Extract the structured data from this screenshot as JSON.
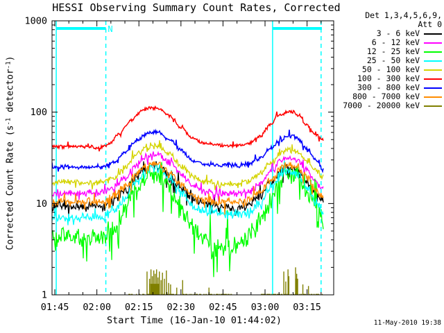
{
  "chart_data": {
    "type": "line",
    "title": "HESSI Observing Summary Count Rates, Corrected",
    "xlabel": "Start Time (16-Jan-10 01:44:02)",
    "ylabel_parts": {
      "p1": "Corrected Count Rate (s",
      "s1": "-1",
      "p2": " detector",
      "s2": "-1",
      "p3": ")"
    },
    "footer_timestamp": "11-May-2010 19:38",
    "x_axis": {
      "unit": "minutes since 01:44:02",
      "range_min": [
        0,
        100.5
      ],
      "ticks": [
        {
          "m": 1,
          "label": "01:45"
        },
        {
          "m": 16,
          "label": "02:00"
        },
        {
          "m": 31,
          "label": "02:15"
        },
        {
          "m": 46,
          "label": "02:30"
        },
        {
          "m": 61,
          "label": "02:45"
        },
        {
          "m": 76,
          "label": "03:00"
        },
        {
          "m": 91,
          "label": "03:15"
        }
      ],
      "minor_ticks_min": [
        6,
        11,
        21,
        26,
        36,
        41,
        51,
        56,
        66,
        71,
        81,
        86,
        96
      ]
    },
    "y_axis": {
      "scale": "log",
      "range": [
        1,
        1000
      ],
      "ticks": [
        {
          "v": 1000,
          "label": "1000"
        },
        {
          "v": 100,
          "label": "100"
        },
        {
          "v": 10,
          "label": "10"
        },
        {
          "v": 1,
          "label": "1"
        }
      ]
    },
    "legend": {
      "header_line1": "Det 1,3,4,5,6,9,",
      "header_line2": "Att 0"
    },
    "flags": {
      "color": "#00ffff",
      "night_label": "N",
      "night_label_min": 19.9,
      "night_bars_min": [
        [
          1.5,
          19.2
        ],
        [
          78.7,
          96.3
        ]
      ],
      "solid_lines_min": [
        1.5,
        78.7
      ],
      "dashed_lines_min": [
        19.2,
        96.0
      ]
    },
    "series": [
      {
        "label": "3 - 6 keV",
        "color": "#000000",
        "noise": 0.045,
        "dip_spikes": true,
        "keypoints": [
          [
            0,
            9.3
          ],
          [
            14,
            9.3
          ],
          [
            18,
            9.3
          ],
          [
            22,
            11
          ],
          [
            26,
            14
          ],
          [
            30,
            20
          ],
          [
            34,
            25
          ],
          [
            36,
            27
          ],
          [
            38,
            26
          ],
          [
            42,
            21
          ],
          [
            46,
            15
          ],
          [
            50,
            11.5
          ],
          [
            54,
            10
          ],
          [
            60,
            9
          ],
          [
            66,
            9
          ],
          [
            70,
            9.5
          ],
          [
            74,
            12
          ],
          [
            78,
            17
          ],
          [
            82,
            23
          ],
          [
            84,
            25
          ],
          [
            86,
            24
          ],
          [
            88,
            22
          ],
          [
            91,
            17
          ],
          [
            94,
            12.5
          ],
          [
            97,
            10.5
          ]
        ]
      },
      {
        "label": "6 - 12 keV",
        "color": "#ff00ff",
        "noise": 0.032,
        "dip_spikes": false,
        "keypoints": [
          [
            0,
            13
          ],
          [
            14,
            13
          ],
          [
            18,
            13
          ],
          [
            22,
            15
          ],
          [
            26,
            19
          ],
          [
            30,
            26
          ],
          [
            34,
            33
          ],
          [
            36,
            35
          ],
          [
            38,
            34
          ],
          [
            42,
            28
          ],
          [
            46,
            21
          ],
          [
            50,
            16
          ],
          [
            54,
            13.5
          ],
          [
            60,
            13
          ],
          [
            66,
            13
          ],
          [
            70,
            13.5
          ],
          [
            74,
            16
          ],
          [
            78,
            22
          ],
          [
            82,
            30
          ],
          [
            84,
            32
          ],
          [
            86,
            31
          ],
          [
            88,
            29
          ],
          [
            91,
            23
          ],
          [
            94,
            17
          ],
          [
            97,
            14.5
          ]
        ]
      },
      {
        "label": "12 - 25 keV",
        "color": "#00ff00",
        "noise": 0.095,
        "dip_spikes": true,
        "keypoints": [
          [
            0,
            4.2
          ],
          [
            14,
            4.2
          ],
          [
            18,
            4.2
          ],
          [
            22,
            5.5
          ],
          [
            26,
            8.5
          ],
          [
            30,
            14
          ],
          [
            34,
            19
          ],
          [
            36,
            21
          ],
          [
            38,
            20
          ],
          [
            42,
            15
          ],
          [
            46,
            9
          ],
          [
            50,
            5.5
          ],
          [
            54,
            4
          ],
          [
            58,
            3.4
          ],
          [
            64,
            3.4
          ],
          [
            68,
            3.8
          ],
          [
            72,
            5
          ],
          [
            76,
            8
          ],
          [
            80,
            14
          ],
          [
            83,
            20
          ],
          [
            85,
            22
          ],
          [
            87,
            21
          ],
          [
            89,
            18
          ],
          [
            91,
            14
          ],
          [
            94,
            9
          ],
          [
            97,
            6.5
          ]
        ]
      },
      {
        "label": "25 - 50 keV",
        "color": "#00ffff",
        "noise": 0.045,
        "dip_spikes": false,
        "keypoints": [
          [
            0,
            7
          ],
          [
            14,
            7
          ],
          [
            18,
            7
          ],
          [
            22,
            8.5
          ],
          [
            26,
            11.5
          ],
          [
            30,
            17
          ],
          [
            34,
            23
          ],
          [
            36,
            25
          ],
          [
            38,
            24
          ],
          [
            42,
            19
          ],
          [
            46,
            13
          ],
          [
            50,
            9.5
          ],
          [
            54,
            8.2
          ],
          [
            60,
            7.6
          ],
          [
            66,
            7.6
          ],
          [
            70,
            8
          ],
          [
            74,
            10
          ],
          [
            78,
            14.5
          ],
          [
            82,
            21
          ],
          [
            84,
            23
          ],
          [
            86,
            22
          ],
          [
            88,
            20
          ],
          [
            91,
            15
          ],
          [
            94,
            10.5
          ],
          [
            97,
            8
          ]
        ]
      },
      {
        "label": "50 - 100 keV",
        "color": "#d4d400",
        "noise": 0.028,
        "dip_spikes": false,
        "keypoints": [
          [
            0,
            17
          ],
          [
            14,
            17
          ],
          [
            18,
            17
          ],
          [
            22,
            19
          ],
          [
            26,
            25
          ],
          [
            30,
            34
          ],
          [
            34,
            41
          ],
          [
            36,
            43
          ],
          [
            38,
            42
          ],
          [
            42,
            35
          ],
          [
            46,
            26
          ],
          [
            50,
            20
          ],
          [
            54,
            17.5
          ],
          [
            60,
            16.5
          ],
          [
            66,
            16.5
          ],
          [
            70,
            17.5
          ],
          [
            74,
            21
          ],
          [
            78,
            28
          ],
          [
            82,
            36
          ],
          [
            84,
            39
          ],
          [
            86,
            38
          ],
          [
            88,
            35
          ],
          [
            91,
            29
          ],
          [
            94,
            23
          ],
          [
            97,
            19
          ]
        ]
      },
      {
        "label": "100 - 300 keV",
        "color": "#ff0000",
        "noise": 0.016,
        "dip_spikes": false,
        "keypoints": [
          [
            0,
            42
          ],
          [
            10,
            42
          ],
          [
            17,
            41
          ],
          [
            20,
            44
          ],
          [
            24,
            58
          ],
          [
            28,
            82
          ],
          [
            32,
            103
          ],
          [
            35,
            112
          ],
          [
            38,
            110
          ],
          [
            42,
            92
          ],
          [
            46,
            68
          ],
          [
            50,
            52
          ],
          [
            54,
            46
          ],
          [
            58,
            44
          ],
          [
            62,
            43
          ],
          [
            66,
            43
          ],
          [
            70,
            45
          ],
          [
            74,
            54
          ],
          [
            78,
            74
          ],
          [
            81,
            92
          ],
          [
            84,
            101
          ],
          [
            86,
            100
          ],
          [
            88,
            92
          ],
          [
            91,
            72
          ],
          [
            94,
            57
          ],
          [
            97,
            49
          ]
        ]
      },
      {
        "label": "300 - 800 keV",
        "color": "#0000ff",
        "noise": 0.02,
        "dip_spikes": false,
        "keypoints": [
          [
            0,
            25
          ],
          [
            14,
            25
          ],
          [
            18,
            25
          ],
          [
            22,
            28
          ],
          [
            26,
            36
          ],
          [
            30,
            48
          ],
          [
            34,
            58
          ],
          [
            36,
            61
          ],
          [
            38,
            60
          ],
          [
            42,
            50
          ],
          [
            46,
            38
          ],
          [
            50,
            30
          ],
          [
            54,
            27
          ],
          [
            60,
            26
          ],
          [
            66,
            26
          ],
          [
            70,
            27
          ],
          [
            74,
            31
          ],
          [
            78,
            40
          ],
          [
            82,
            51
          ],
          [
            84,
            55
          ],
          [
            86,
            54
          ],
          [
            88,
            50
          ],
          [
            91,
            40
          ],
          [
            94,
            30
          ],
          [
            97,
            23
          ]
        ]
      },
      {
        "label": "800 - 7000 keV",
        "color": "#ff8c00",
        "noise": 0.035,
        "dip_spikes": true,
        "keypoints": [
          [
            0,
            10.5
          ],
          [
            14,
            10.5
          ],
          [
            18,
            10.5
          ],
          [
            22,
            12
          ],
          [
            26,
            15
          ],
          [
            30,
            21
          ],
          [
            34,
            26
          ],
          [
            36,
            28
          ],
          [
            38,
            27
          ],
          [
            42,
            22
          ],
          [
            46,
            16
          ],
          [
            50,
            12.5
          ],
          [
            54,
            11
          ],
          [
            60,
            10.5
          ],
          [
            66,
            10.5
          ],
          [
            70,
            11
          ],
          [
            74,
            13
          ],
          [
            78,
            18
          ],
          [
            82,
            25
          ],
          [
            84,
            27
          ],
          [
            86,
            26
          ],
          [
            88,
            24
          ],
          [
            91,
            19
          ],
          [
            94,
            14
          ],
          [
            97,
            11.5
          ]
        ]
      }
    ],
    "background_channel": {
      "label": "7000 - 20000 keV",
      "color": "#808000",
      "baseline_value": 1.0,
      "baseline_segments_min": [
        [
          27,
          64
        ],
        [
          74,
          96.5
        ]
      ],
      "spikes": [
        [
          33.9,
          1.8
        ],
        [
          34.8,
          1.5
        ],
        [
          35.3,
          1.9
        ],
        [
          35.8,
          1.6
        ],
        [
          36.3,
          1.85
        ],
        [
          36.8,
          1.7
        ],
        [
          37.3,
          1.9
        ],
        [
          37.8,
          1.55
        ],
        [
          38.3,
          1.8
        ],
        [
          38.9,
          1.45
        ],
        [
          39.4,
          1.75
        ],
        [
          40.1,
          1.5
        ],
        [
          40.8,
          1.85
        ],
        [
          41.6,
          1.35
        ],
        [
          42.3,
          1.3
        ],
        [
          44.5,
          1.2
        ],
        [
          46.6,
          1.45
        ],
        [
          56.0,
          1.2
        ],
        [
          82.7,
          1.8
        ],
        [
          83.4,
          1.4
        ],
        [
          84.2,
          1.9
        ],
        [
          84.5,
          1.6
        ],
        [
          86.9,
          2.0
        ],
        [
          87.3,
          1.7
        ],
        [
          87.6,
          1.5
        ],
        [
          89.5,
          1.3
        ],
        [
          91.5,
          1.25
        ]
      ],
      "blocks": [
        [
          35.0,
          38.5,
          1.32
        ],
        [
          86.8,
          87.8,
          1.5
        ]
      ]
    }
  }
}
